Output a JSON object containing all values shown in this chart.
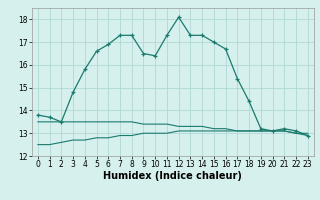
{
  "xlabel": "Humidex (Indice chaleur)",
  "background_color": "#d6f0ee",
  "grid_color": "#b0d8d4",
  "line_color": "#1a7a6e",
  "xlim": [
    -0.5,
    23.5
  ],
  "ylim": [
    12,
    18.5
  ],
  "yticks": [
    12,
    13,
    14,
    15,
    16,
    17,
    18
  ],
  "xticks": [
    0,
    1,
    2,
    3,
    4,
    5,
    6,
    7,
    8,
    9,
    10,
    11,
    12,
    13,
    14,
    15,
    16,
    17,
    18,
    19,
    20,
    21,
    22,
    23
  ],
  "series1_x": [
    0,
    1,
    2,
    3,
    4,
    5,
    6,
    7,
    8,
    9,
    10,
    11,
    12,
    13,
    14,
    15,
    16,
    17,
    18,
    19,
    20,
    21,
    22,
    23
  ],
  "series1_y": [
    13.8,
    13.7,
    13.5,
    14.8,
    15.8,
    16.6,
    16.9,
    17.3,
    17.3,
    16.5,
    16.4,
    17.3,
    18.1,
    17.3,
    17.3,
    17.0,
    16.7,
    15.4,
    14.4,
    13.2,
    13.1,
    13.2,
    13.1,
    12.9
  ],
  "series2_x": [
    0,
    1,
    2,
    3,
    4,
    5,
    6,
    7,
    8,
    9,
    10,
    11,
    12,
    13,
    14,
    15,
    16,
    17,
    18,
    19,
    20,
    21,
    22,
    23
  ],
  "series2_y": [
    13.5,
    13.5,
    13.5,
    13.5,
    13.5,
    13.5,
    13.5,
    13.5,
    13.5,
    13.4,
    13.4,
    13.4,
    13.3,
    13.3,
    13.3,
    13.2,
    13.2,
    13.1,
    13.1,
    13.1,
    13.1,
    13.1,
    13.0,
    13.0
  ],
  "series3_x": [
    0,
    1,
    2,
    3,
    4,
    5,
    6,
    7,
    8,
    9,
    10,
    11,
    12,
    13,
    14,
    15,
    16,
    17,
    18,
    19,
    20,
    21,
    22,
    23
  ],
  "series3_y": [
    12.5,
    12.5,
    12.6,
    12.7,
    12.7,
    12.8,
    12.8,
    12.9,
    12.9,
    13.0,
    13.0,
    13.0,
    13.1,
    13.1,
    13.1,
    13.1,
    13.1,
    13.1,
    13.1,
    13.1,
    13.1,
    13.1,
    13.0,
    12.9
  ],
  "tick_fontsize": 5.5,
  "xlabel_fontsize": 7
}
